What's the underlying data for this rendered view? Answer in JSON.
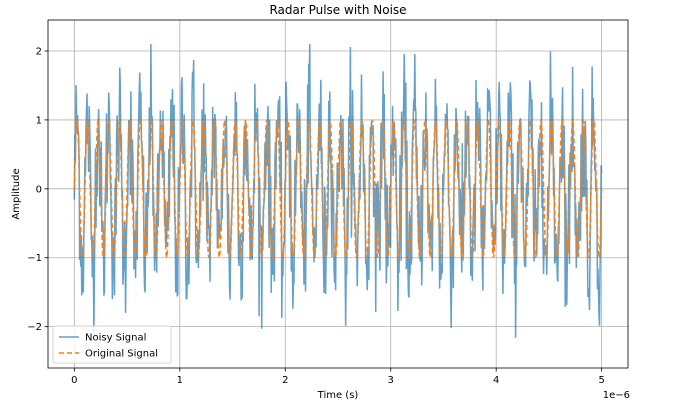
{
  "chart_data": {
    "type": "line",
    "title": "Radar Pulse with Noise",
    "xlabel": "Time (s)",
    "ylabel": "Amplitude",
    "x_offset_label": "1e−6",
    "xlim": [
      -0.25,
      5.25
    ],
    "ylim": [
      -2.6,
      2.45
    ],
    "x_ticks": [
      0,
      1,
      2,
      3,
      4,
      5
    ],
    "x_tick_labels": [
      "0",
      "1",
      "2",
      "3",
      "4",
      "5"
    ],
    "y_ticks": [
      -2,
      -1,
      0,
      1,
      2
    ],
    "y_tick_labels": [
      "−2",
      "−1",
      "0",
      "1",
      "2"
    ],
    "grid": true,
    "legend_position": "lower-left",
    "x_range": [
      0,
      5
    ],
    "series": [
      {
        "name": "Noisy Signal",
        "color": "#1f77b4",
        "line_style": "solid",
        "amplitude": 1,
        "cycles": 50,
        "noise_amplitude": 1.0
      },
      {
        "name": "Original Signal",
        "color": "#ff7f0e",
        "line_style": "dashed",
        "amplitude": 1,
        "cycles": 50
      }
    ]
  }
}
